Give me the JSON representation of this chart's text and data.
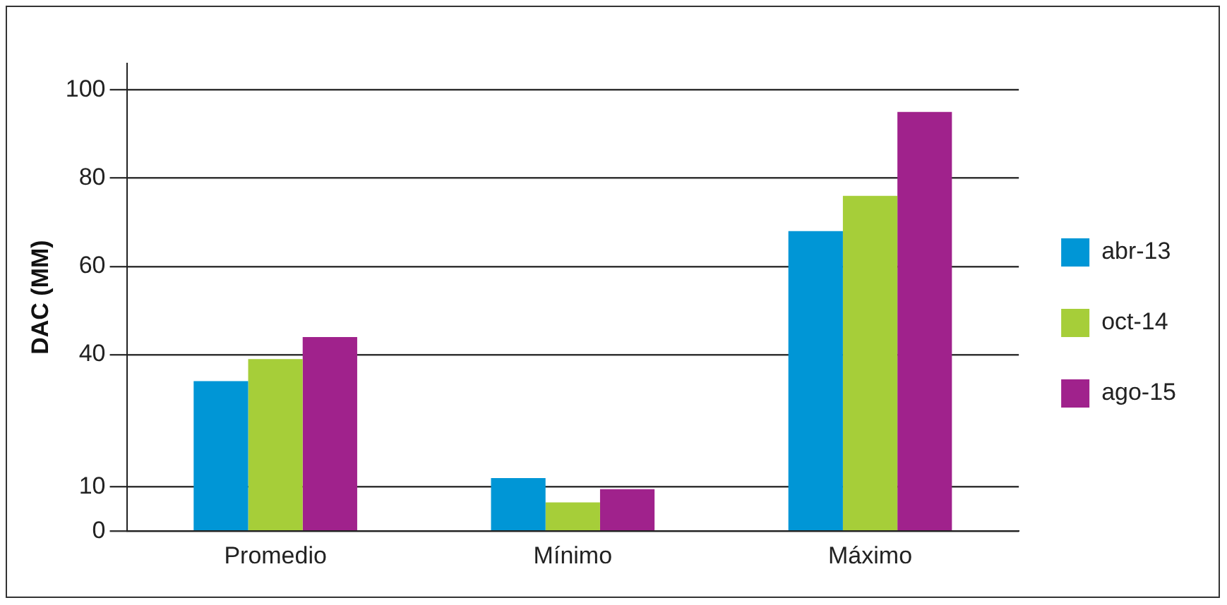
{
  "chart_data": {
    "type": "bar",
    "ylabel": "DAC (MM)",
    "categories": [
      "Promedio",
      "Mínimo",
      "Máximo"
    ],
    "series": [
      {
        "name": "abr-13",
        "color": "#0096d6",
        "values": [
          34,
          12,
          68
        ]
      },
      {
        "name": "oct-14",
        "color": "#a6ce39",
        "values": [
          39,
          6.5,
          76
        ]
      },
      {
        "name": "ago-15",
        "color": "#a0228c",
        "values": [
          44,
          9.5,
          95
        ]
      }
    ],
    "ylim": [
      0,
      106
    ],
    "yticks": [
      0,
      10,
      40,
      60,
      80,
      100
    ],
    "grid": "y",
    "legend": "right"
  }
}
